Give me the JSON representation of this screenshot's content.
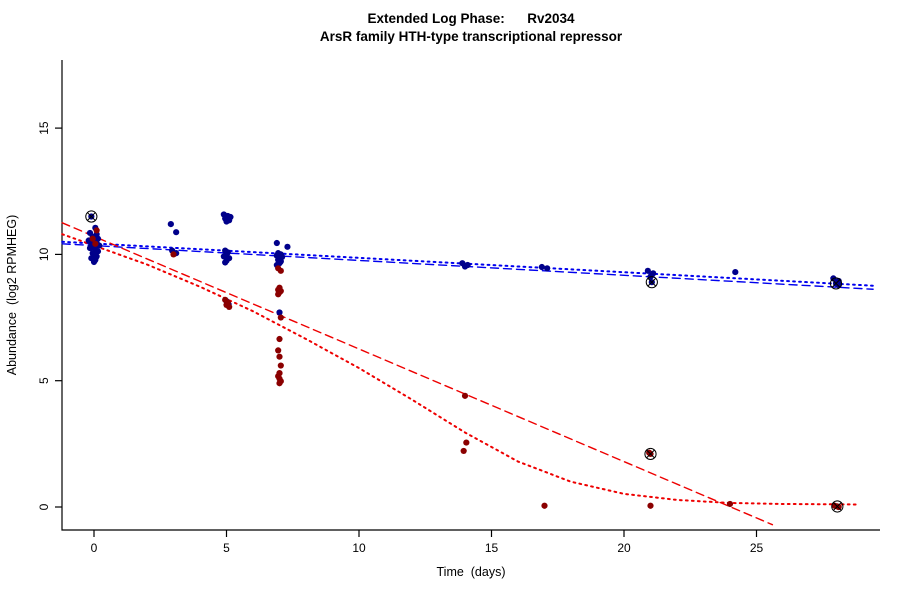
{
  "chart_data": {
    "type": "scatter",
    "title": "Extended Log Phase:      Rv2034",
    "subtitle": "ArsR family HTH-type transcriptional repressor",
    "xlabel": "Time  (days)",
    "ylabel": "Abundance  (log2 RPMHEG)",
    "xlim": [
      -1.2,
      29.4
    ],
    "ylim": [
      -0.6,
      16.9
    ],
    "x_ticks": [
      0,
      5,
      10,
      15,
      20,
      25
    ],
    "y_ticks": [
      0,
      5,
      10,
      15
    ],
    "grid": false,
    "legend": "none",
    "axis_color": "#000000",
    "series": [
      {
        "name": "condition-blue",
        "color": "#00008B",
        "marker": "circle",
        "points": [
          [
            -0.1,
            11.5
          ],
          [
            0.05,
            11.05
          ],
          [
            -0.15,
            10.85
          ],
          [
            0.1,
            10.8
          ],
          [
            -0.05,
            10.7
          ],
          [
            0.15,
            10.62
          ],
          [
            -0.2,
            10.55
          ],
          [
            0.0,
            10.5
          ],
          [
            0.1,
            10.45
          ],
          [
            -0.1,
            10.4
          ],
          [
            0.2,
            10.35
          ],
          [
            0.0,
            10.3
          ],
          [
            -0.15,
            10.25
          ],
          [
            0.05,
            10.2
          ],
          [
            0.15,
            10.12
          ],
          [
            -0.05,
            10.05
          ],
          [
            0.0,
            9.98
          ],
          [
            0.1,
            9.92
          ],
          [
            -0.1,
            9.85
          ],
          [
            0.05,
            9.78
          ],
          [
            0.0,
            9.7
          ],
          [
            2.9,
            11.2
          ],
          [
            3.1,
            10.88
          ],
          [
            2.95,
            10.15
          ],
          [
            3.1,
            10.05
          ],
          [
            4.9,
            11.58
          ],
          [
            5.05,
            11.52
          ],
          [
            5.15,
            11.48
          ],
          [
            4.95,
            11.42
          ],
          [
            5.1,
            11.35
          ],
          [
            5.0,
            11.3
          ],
          [
            4.95,
            10.15
          ],
          [
            5.05,
            10.08
          ],
          [
            5.0,
            10.0
          ],
          [
            4.9,
            9.92
          ],
          [
            5.1,
            9.85
          ],
          [
            5.0,
            9.75
          ],
          [
            4.95,
            9.68
          ],
          [
            5.0,
            8.15
          ],
          [
            5.08,
            8.02
          ],
          [
            6.9,
            10.45
          ],
          [
            7.3,
            10.3
          ],
          [
            6.95,
            10.05
          ],
          [
            7.05,
            10.0
          ],
          [
            6.9,
            9.95
          ],
          [
            7.1,
            9.9
          ],
          [
            7.0,
            9.85
          ],
          [
            6.95,
            9.78
          ],
          [
            7.05,
            9.72
          ],
          [
            7.0,
            9.65
          ],
          [
            6.9,
            9.58
          ],
          [
            7.0,
            7.7
          ],
          [
            13.9,
            9.65
          ],
          [
            14.1,
            9.58
          ],
          [
            14.0,
            9.52
          ],
          [
            16.9,
            9.5
          ],
          [
            17.1,
            9.45
          ],
          [
            20.9,
            9.35
          ],
          [
            21.1,
            9.25
          ],
          [
            21.0,
            9.12
          ],
          [
            21.05,
            8.9
          ],
          [
            24.2,
            9.3
          ],
          [
            27.9,
            9.05
          ],
          [
            28.1,
            8.95
          ],
          [
            28.0,
            8.85
          ],
          [
            28.1,
            8.78
          ]
        ]
      },
      {
        "name": "condition-red",
        "color": "#8B0000",
        "marker": "circle",
        "points": [
          [
            0.1,
            10.95
          ],
          [
            -0.05,
            10.62
          ],
          [
            0.05,
            10.42
          ],
          [
            3.0,
            10.0
          ],
          [
            4.95,
            8.2
          ],
          [
            5.05,
            8.1
          ],
          [
            5.0,
            8.0
          ],
          [
            5.1,
            7.92
          ],
          [
            6.95,
            9.45
          ],
          [
            7.05,
            9.35
          ],
          [
            7.0,
            8.68
          ],
          [
            6.95,
            8.6
          ],
          [
            7.05,
            8.55
          ],
          [
            7.0,
            8.5
          ],
          [
            6.95,
            8.42
          ],
          [
            7.05,
            7.5
          ],
          [
            7.0,
            6.65
          ],
          [
            6.95,
            6.2
          ],
          [
            7.0,
            5.95
          ],
          [
            7.05,
            5.6
          ],
          [
            7.0,
            5.3
          ],
          [
            6.95,
            5.18
          ],
          [
            7.0,
            5.08
          ],
          [
            7.05,
            4.98
          ],
          [
            7.0,
            4.9
          ],
          [
            14.0,
            4.4
          ],
          [
            14.05,
            2.55
          ],
          [
            13.95,
            2.22
          ],
          [
            17.0,
            0.05
          ],
          [
            20.95,
            2.15
          ],
          [
            21.0,
            2.1
          ],
          [
            21.0,
            0.05
          ],
          [
            24.0,
            0.12
          ],
          [
            27.95,
            0.05
          ],
          [
            28.05,
            0.02
          ],
          [
            28.1,
            0.0
          ]
        ]
      }
    ],
    "fit_lines": [
      {
        "name": "blue-dashed-fit",
        "color": "#0000EE",
        "style": "dashed",
        "points": [
          [
            -1.2,
            10.42
          ],
          [
            29.4,
            8.62
          ]
        ]
      },
      {
        "name": "blue-dotted-fit",
        "color": "#0000EE",
        "style": "dotted",
        "points": [
          [
            -1.2,
            10.5
          ],
          [
            29.4,
            8.76
          ]
        ]
      },
      {
        "name": "red-dashed-fit",
        "color": "#EE0000",
        "style": "dashed",
        "points": [
          [
            -1.2,
            11.25
          ],
          [
            25.6,
            -0.7
          ]
        ]
      },
      {
        "name": "red-dotted-fit",
        "color": "#EE0000",
        "style": "dotted",
        "points": [
          [
            -1.2,
            10.8
          ],
          [
            0,
            10.35
          ],
          [
            2,
            9.6
          ],
          [
            4,
            8.72
          ],
          [
            6,
            7.75
          ],
          [
            8,
            6.65
          ],
          [
            10,
            5.5
          ],
          [
            12,
            4.25
          ],
          [
            14,
            2.95
          ],
          [
            16,
            1.8
          ],
          [
            18,
            1.0
          ],
          [
            20,
            0.52
          ],
          [
            22,
            0.28
          ],
          [
            24,
            0.16
          ],
          [
            26,
            0.12
          ],
          [
            28.8,
            0.1
          ]
        ]
      }
    ],
    "flagged_points": [
      [
        -0.1,
        11.5
      ],
      [
        21.05,
        8.9
      ],
      [
        28.0,
        8.85
      ],
      [
        21.0,
        2.1
      ],
      [
        28.05,
        0.02
      ]
    ]
  }
}
